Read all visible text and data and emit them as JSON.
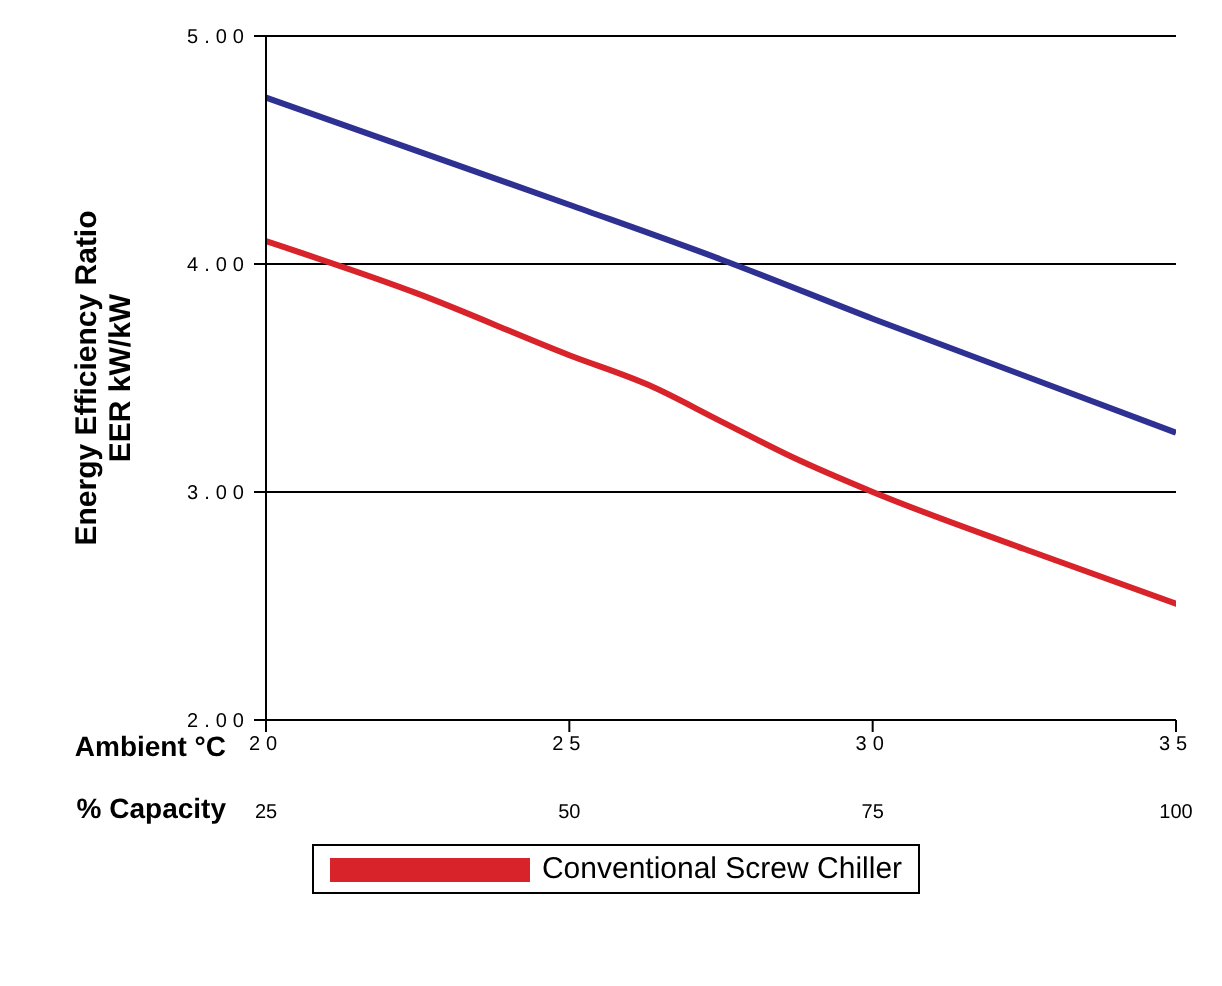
{
  "chart_data": {
    "type": "line",
    "ylabel": "Energy Efficiency Ratio\nEER kW/kW",
    "xlabel": "Ambient °C",
    "x2label": "% Capacity",
    "xlim": [
      20,
      35
    ],
    "xticks": [
      20,
      25,
      30,
      35
    ],
    "x2lim": [
      25,
      100
    ],
    "x2ticks": [
      25,
      50,
      75,
      100
    ],
    "ylim": [
      2,
      5
    ],
    "yticks": [
      {
        "value": 2,
        "label": "2.00"
      },
      {
        "value": 3,
        "label": "3.00"
      },
      {
        "value": 4,
        "label": "4.00"
      },
      {
        "value": 5,
        "label": "5.00"
      }
    ],
    "grid": "y",
    "legend": "bottom",
    "marker": "none",
    "line_style": "solid",
    "series": [
      {
        "name": "Conventional Screw Chiller",
        "color": "#d8232a",
        "x": [
          20,
          22.5,
          25,
          26.3,
          27.5,
          28.7,
          30,
          32.5,
          35
        ],
        "values": [
          4.1,
          3.87,
          3.6,
          3.47,
          3.31,
          3.15,
          3.0,
          2.75,
          2.51
        ]
      },
      {
        "color": "#2e3192",
        "x": [
          20,
          25,
          27.5,
          30,
          35
        ],
        "values": [
          4.73,
          4.26,
          4.02,
          3.76,
          3.26
        ]
      }
    ]
  }
}
